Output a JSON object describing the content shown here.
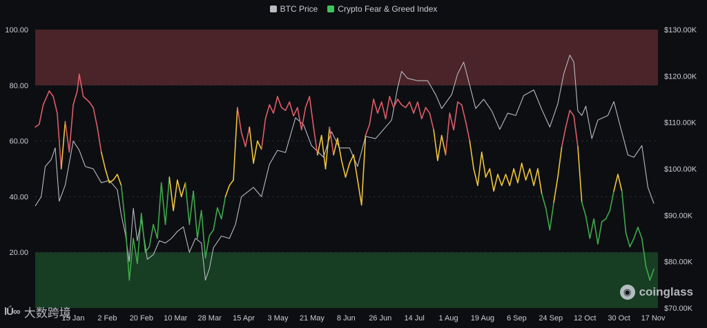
{
  "legend": [
    {
      "label": "BTC Price",
      "color": "#b9bcc4"
    },
    {
      "label": "Crypto Fear & Greed Index",
      "color": "#3ec45a"
    }
  ],
  "colors": {
    "greed_zone": "#4a2428",
    "fear_zone": "#173d23",
    "btc_line": "#b9bcc4",
    "fgi_greed": "#e05d68",
    "fgi_neutral": "#f0c63a",
    "fgi_fear": "#3faa4b",
    "grid": "#2c2f37",
    "axis_text": "#c9cdd6"
  },
  "watermark": {
    "icon": "coinglass-logo-icon",
    "text": "coinglass"
  },
  "corner_brand": {
    "logo": "lǗ∞",
    "name": "大数跨境"
  },
  "chart_data": {
    "type": "line",
    "grid": true,
    "legend_position": "top-center",
    "x_labels": [
      "15 Jan",
      "2 Feb",
      "20 Feb",
      "10 Mar",
      "28 Mar",
      "15 Apr",
      "3 May",
      "21 May",
      "8 Jun",
      "26 Jun",
      "14 Jul",
      "1 Aug",
      "19 Aug",
      "6 Sep",
      "24 Sep",
      "12 Oct",
      "30 Oct",
      "17 Nov"
    ],
    "x_start": "2025-01-12",
    "left_axis": {
      "min": 0,
      "max": 100,
      "ticks": [
        "100.00",
        "80.00",
        "60.00",
        "40.00",
        "20.00"
      ],
      "tick_values": [
        100,
        80,
        60,
        40,
        20
      ]
    },
    "right_axis": {
      "min": 70000,
      "max": 130000,
      "ticks": [
        "$130.00K",
        "$120.00K",
        "$110.00K",
        "$100.00K",
        "$90.00K",
        "$80.00K",
        "$70.00K"
      ],
      "tick_values": [
        130000,
        120000,
        110000,
        100000,
        90000,
        80000,
        70000
      ]
    },
    "zones": [
      {
        "name": "greed",
        "from": 80,
        "to": 100
      },
      {
        "name": "fear",
        "from": 0,
        "to": 20
      }
    ],
    "thresholds": {
      "greed_above": 60,
      "fear_below": 40
    },
    "series": [
      {
        "name": "BTC Price",
        "axis": "right",
        "points": [
          [
            "2025-01-12",
            92000
          ],
          [
            "2025-01-15",
            94000
          ],
          [
            "2025-01-17",
            100500
          ],
          [
            "2025-01-20",
            102000
          ],
          [
            "2025-01-22",
            104500
          ],
          [
            "2025-01-24",
            93000
          ],
          [
            "2025-01-27",
            96500
          ],
          [
            "2025-01-31",
            106000
          ],
          [
            "2025-02-03",
            104000
          ],
          [
            "2025-02-06",
            100500
          ],
          [
            "2025-02-10",
            100000
          ],
          [
            "2025-02-14",
            97000
          ],
          [
            "2025-02-18",
            97500
          ],
          [
            "2025-02-22",
            95500
          ],
          [
            "2025-02-24",
            90000
          ],
          [
            "2025-02-26",
            86000
          ],
          [
            "2025-02-28",
            80000
          ],
          [
            "2025-03-02",
            91500
          ],
          [
            "2025-03-04",
            84500
          ],
          [
            "2025-03-06",
            89000
          ],
          [
            "2025-03-09",
            80500
          ],
          [
            "2025-03-12",
            81500
          ],
          [
            "2025-03-15",
            84500
          ],
          [
            "2025-03-18",
            84000
          ],
          [
            "2025-03-21",
            85000
          ],
          [
            "2025-03-24",
            86500
          ],
          [
            "2025-03-27",
            87500
          ],
          [
            "2025-03-30",
            82000
          ],
          [
            "2025-04-02",
            85000
          ],
          [
            "2025-04-05",
            84000
          ],
          [
            "2025-04-07",
            76000
          ],
          [
            "2025-04-09",
            78500
          ],
          [
            "2025-04-11",
            83000
          ],
          [
            "2025-04-15",
            85500
          ],
          [
            "2025-04-19",
            85000
          ],
          [
            "2025-04-22",
            88000
          ],
          [
            "2025-04-25",
            94000
          ],
          [
            "2025-04-28",
            95000
          ],
          [
            "2025-05-01",
            96000
          ],
          [
            "2025-05-05",
            94000
          ],
          [
            "2025-05-09",
            101000
          ],
          [
            "2025-05-13",
            104000
          ],
          [
            "2025-05-17",
            103500
          ],
          [
            "2025-05-22",
            111000
          ],
          [
            "2025-05-26",
            109500
          ],
          [
            "2025-05-30",
            105000
          ],
          [
            "2025-06-05",
            102500
          ],
          [
            "2025-06-09",
            108000
          ],
          [
            "2025-06-13",
            104500
          ],
          [
            "2025-06-18",
            104500
          ],
          [
            "2025-06-22",
            100500
          ],
          [
            "2025-06-26",
            107000
          ],
          [
            "2025-07-01",
            106500
          ],
          [
            "2025-07-05",
            108500
          ],
          [
            "2025-07-09",
            110500
          ],
          [
            "2025-07-12",
            117500
          ],
          [
            "2025-07-14",
            121000
          ],
          [
            "2025-07-17",
            119500
          ],
          [
            "2025-07-22",
            119000
          ],
          [
            "2025-07-27",
            119000
          ],
          [
            "2025-07-31",
            116000
          ],
          [
            "2025-08-03",
            113000
          ],
          [
            "2025-08-08",
            116000
          ],
          [
            "2025-08-11",
            120500
          ],
          [
            "2025-08-14",
            123000
          ],
          [
            "2025-08-17",
            118000
          ],
          [
            "2025-08-20",
            113000
          ],
          [
            "2025-08-24",
            115000
          ],
          [
            "2025-08-28",
            112500
          ],
          [
            "2025-09-01",
            108500
          ],
          [
            "2025-09-05",
            112000
          ],
          [
            "2025-09-09",
            111500
          ],
          [
            "2025-09-13",
            115800
          ],
          [
            "2025-09-18",
            117000
          ],
          [
            "2025-09-22",
            112800
          ],
          [
            "2025-09-26",
            109000
          ],
          [
            "2025-09-30",
            114000
          ],
          [
            "2025-10-03",
            120500
          ],
          [
            "2025-10-06",
            124500
          ],
          [
            "2025-10-08",
            123000
          ],
          [
            "2025-10-10",
            112500
          ],
          [
            "2025-10-12",
            111500
          ],
          [
            "2025-10-14",
            113500
          ],
          [
            "2025-10-17",
            106500
          ],
          [
            "2025-10-20",
            110500
          ],
          [
            "2025-10-25",
            111500
          ],
          [
            "2025-10-28",
            114500
          ],
          [
            "2025-10-31",
            109500
          ],
          [
            "2025-11-04",
            103000
          ],
          [
            "2025-11-07",
            102500
          ],
          [
            "2025-11-11",
            105000
          ],
          [
            "2025-11-14",
            96000
          ],
          [
            "2025-11-17",
            92500
          ]
        ]
      },
      {
        "name": "Crypto Fear & Greed Index",
        "axis": "left",
        "points": [
          [
            "2025-01-12",
            65
          ],
          [
            "2025-01-14",
            66
          ],
          [
            "2025-01-16",
            73
          ],
          [
            "2025-01-19",
            78
          ],
          [
            "2025-01-21",
            76
          ],
          [
            "2025-01-23",
            70
          ],
          [
            "2025-01-25",
            50
          ],
          [
            "2025-01-27",
            67
          ],
          [
            "2025-01-29",
            56
          ],
          [
            "2025-01-31",
            73
          ],
          [
            "2025-02-02",
            78
          ],
          [
            "2025-02-03",
            84
          ],
          [
            "2025-02-05",
            76
          ],
          [
            "2025-02-08",
            74
          ],
          [
            "2025-02-10",
            72
          ],
          [
            "2025-02-12",
            65
          ],
          [
            "2025-02-14",
            56
          ],
          [
            "2025-02-16",
            50
          ],
          [
            "2025-02-18",
            45
          ],
          [
            "2025-02-20",
            46
          ],
          [
            "2025-02-22",
            48
          ],
          [
            "2025-02-24",
            44
          ],
          [
            "2025-02-26",
            30
          ],
          [
            "2025-02-28",
            10
          ],
          [
            "2025-03-02",
            25
          ],
          [
            "2025-03-04",
            16
          ],
          [
            "2025-03-06",
            34
          ],
          [
            "2025-03-08",
            20
          ],
          [
            "2025-03-10",
            22
          ],
          [
            "2025-03-12",
            30
          ],
          [
            "2025-03-14",
            25
          ],
          [
            "2025-03-16",
            45
          ],
          [
            "2025-03-18",
            30
          ],
          [
            "2025-03-20",
            47
          ],
          [
            "2025-03-22",
            35
          ],
          [
            "2025-03-24",
            46
          ],
          [
            "2025-03-26",
            40
          ],
          [
            "2025-03-28",
            45
          ],
          [
            "2025-03-30",
            30
          ],
          [
            "2025-04-01",
            42
          ],
          [
            "2025-04-03",
            25
          ],
          [
            "2025-04-05",
            35
          ],
          [
            "2025-04-07",
            18
          ],
          [
            "2025-04-09",
            26
          ],
          [
            "2025-04-11",
            28
          ],
          [
            "2025-04-13",
            36
          ],
          [
            "2025-04-15",
            32
          ],
          [
            "2025-04-17",
            40
          ],
          [
            "2025-04-19",
            44
          ],
          [
            "2025-04-21",
            46
          ],
          [
            "2025-04-23",
            72
          ],
          [
            "2025-04-25",
            63
          ],
          [
            "2025-04-27",
            58
          ],
          [
            "2025-04-29",
            65
          ],
          [
            "2025-05-01",
            52
          ],
          [
            "2025-05-03",
            60
          ],
          [
            "2025-05-05",
            57
          ],
          [
            "2025-05-07",
            68
          ],
          [
            "2025-05-09",
            73
          ],
          [
            "2025-05-11",
            70
          ],
          [
            "2025-05-13",
            76
          ],
          [
            "2025-05-15",
            72
          ],
          [
            "2025-05-17",
            71
          ],
          [
            "2025-05-19",
            74
          ],
          [
            "2025-05-21",
            69
          ],
          [
            "2025-05-23",
            72
          ],
          [
            "2025-05-25",
            64
          ],
          [
            "2025-05-27",
            72
          ],
          [
            "2025-05-29",
            76
          ],
          [
            "2025-05-31",
            65
          ],
          [
            "2025-06-02",
            55
          ],
          [
            "2025-06-04",
            62
          ],
          [
            "2025-06-06",
            50
          ],
          [
            "2025-06-08",
            65
          ],
          [
            "2025-06-10",
            55
          ],
          [
            "2025-06-12",
            61
          ],
          [
            "2025-06-14",
            53
          ],
          [
            "2025-06-16",
            47
          ],
          [
            "2025-06-18",
            52
          ],
          [
            "2025-06-20",
            55
          ],
          [
            "2025-06-22",
            46
          ],
          [
            "2025-06-24",
            37
          ],
          [
            "2025-06-26",
            62
          ],
          [
            "2025-06-28",
            66
          ],
          [
            "2025-06-30",
            75
          ],
          [
            "2025-07-02",
            70
          ],
          [
            "2025-07-04",
            74
          ],
          [
            "2025-07-06",
            68
          ],
          [
            "2025-07-08",
            76
          ],
          [
            "2025-07-10",
            72
          ],
          [
            "2025-07-12",
            75
          ],
          [
            "2025-07-14",
            73
          ],
          [
            "2025-07-16",
            72
          ],
          [
            "2025-07-18",
            74
          ],
          [
            "2025-07-20",
            70
          ],
          [
            "2025-07-22",
            74
          ],
          [
            "2025-07-24",
            68
          ],
          [
            "2025-07-26",
            72
          ],
          [
            "2025-07-28",
            70
          ],
          [
            "2025-07-30",
            64
          ],
          [
            "2025-08-01",
            53
          ],
          [
            "2025-08-03",
            62
          ],
          [
            "2025-08-05",
            55
          ],
          [
            "2025-08-07",
            70
          ],
          [
            "2025-08-09",
            64
          ],
          [
            "2025-08-11",
            74
          ],
          [
            "2025-08-13",
            73
          ],
          [
            "2025-08-15",
            67
          ],
          [
            "2025-08-17",
            60
          ],
          [
            "2025-08-19",
            50
          ],
          [
            "2025-08-21",
            44
          ],
          [
            "2025-08-23",
            56
          ],
          [
            "2025-08-25",
            47
          ],
          [
            "2025-08-27",
            50
          ],
          [
            "2025-08-29",
            42
          ],
          [
            "2025-08-31",
            48
          ],
          [
            "2025-09-02",
            44
          ],
          [
            "2025-09-04",
            48
          ],
          [
            "2025-09-06",
            44
          ],
          [
            "2025-09-08",
            50
          ],
          [
            "2025-09-10",
            45
          ],
          [
            "2025-09-12",
            52
          ],
          [
            "2025-09-14",
            46
          ],
          [
            "2025-09-16",
            50
          ],
          [
            "2025-09-18",
            44
          ],
          [
            "2025-09-20",
            50
          ],
          [
            "2025-09-22",
            41
          ],
          [
            "2025-09-24",
            36
          ],
          [
            "2025-09-26",
            28
          ],
          [
            "2025-09-28",
            38
          ],
          [
            "2025-09-30",
            47
          ],
          [
            "2025-10-02",
            58
          ],
          [
            "2025-10-04",
            65
          ],
          [
            "2025-10-06",
            71
          ],
          [
            "2025-10-08",
            69
          ],
          [
            "2025-10-10",
            58
          ],
          [
            "2025-10-12",
            38
          ],
          [
            "2025-10-14",
            33
          ],
          [
            "2025-10-16",
            25
          ],
          [
            "2025-10-18",
            32
          ],
          [
            "2025-10-20",
            23
          ],
          [
            "2025-10-22",
            31
          ],
          [
            "2025-10-24",
            32
          ],
          [
            "2025-10-26",
            35
          ],
          [
            "2025-10-28",
            42
          ],
          [
            "2025-10-30",
            48
          ],
          [
            "2025-11-01",
            42
          ],
          [
            "2025-11-03",
            27
          ],
          [
            "2025-11-05",
            22
          ],
          [
            "2025-11-07",
            25
          ],
          [
            "2025-11-09",
            29
          ],
          [
            "2025-11-11",
            25
          ],
          [
            "2025-11-13",
            15
          ],
          [
            "2025-11-15",
            10
          ],
          [
            "2025-11-17",
            14
          ]
        ]
      }
    ]
  }
}
